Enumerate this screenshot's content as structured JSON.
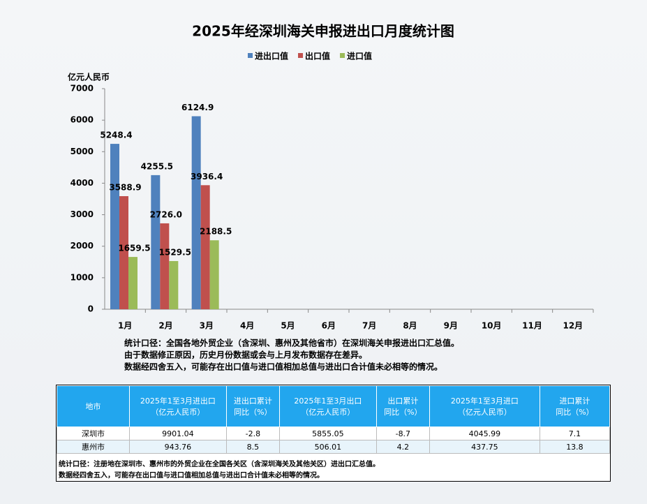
{
  "chart_data": {
    "type": "bar",
    "title": "2025年经深圳海关申报进出口月度统计图",
    "y_label": "亿元人民币",
    "categories": [
      "1月",
      "2月",
      "3月",
      "4月",
      "5月",
      "6月",
      "7月",
      "8月",
      "9月",
      "10月",
      "11月",
      "12月"
    ],
    "series": [
      {
        "name": "进出口值",
        "color": "#4f81bd",
        "values": [
          5248.4,
          4255.5,
          6124.9,
          null,
          null,
          null,
          null,
          null,
          null,
          null,
          null,
          null
        ],
        "value_labels": [
          "5248.4",
          "4255.5",
          "6124.9",
          null,
          null,
          null,
          null,
          null,
          null,
          null,
          null,
          null
        ]
      },
      {
        "name": "出口值",
        "color": "#c0504d",
        "values": [
          3588.9,
          2726.0,
          3936.4,
          null,
          null,
          null,
          null,
          null,
          null,
          null,
          null,
          null
        ],
        "value_labels": [
          "3588.9",
          "2726.0",
          "3936.4",
          null,
          null,
          null,
          null,
          null,
          null,
          null,
          null,
          null
        ]
      },
      {
        "name": "进口值",
        "color": "#9bbb59",
        "values": [
          1659.5,
          1529.5,
          2188.5,
          null,
          null,
          null,
          null,
          null,
          null,
          null,
          null,
          null
        ],
        "value_labels": [
          "1659.5",
          "1529.5",
          "2188.5",
          null,
          null,
          null,
          null,
          null,
          null,
          null,
          null,
          null
        ]
      }
    ],
    "ylim": [
      0,
      7000
    ],
    "yticks": [
      0,
      1000,
      2000,
      3000,
      4000,
      5000,
      6000,
      7000
    ],
    "grid": false,
    "legend": "top",
    "notes": [
      "统计口径：全国各地外贸企业（含深圳、惠州及其他省市）在深圳海关申报进出口汇总值。",
      "由于数据修正原因，历史月份数据或会与上月发布数据存在差异。",
      "数据经四舍五入，可能存在出口值与进口值相加总值与进出口合计值未必相等的情况。"
    ]
  },
  "table": {
    "header": [
      [
        "地市"
      ],
      [
        "2025年1至3月进出口",
        "（亿元人民币）"
      ],
      [
        "进出口累计",
        "同比（%）"
      ],
      [
        "2025年1至3月出口",
        "（亿元人民币）"
      ],
      [
        "出口累计",
        "同比（%）"
      ],
      [
        "2025年1至3月进口",
        "（亿元人民币）"
      ],
      [
        "进口累计",
        "同比（%）"
      ]
    ],
    "rows": [
      [
        "深圳市",
        "9901.04",
        "-2.8",
        "5855.05",
        "-8.7",
        "4045.99",
        "7.1"
      ],
      [
        "惠州市",
        "943.76",
        "8.5",
        "506.01",
        "4.2",
        "437.75",
        "13.8"
      ]
    ],
    "notes": [
      "统计口径：注册地在深圳市、惠州市的外贸企业在全国各关区（含深圳海关及其他关区）进出口汇总值。",
      "数据经四舍五入，可能存在出口值与进口值相加总值与进出口合计值未必相等的情况。"
    ]
  }
}
